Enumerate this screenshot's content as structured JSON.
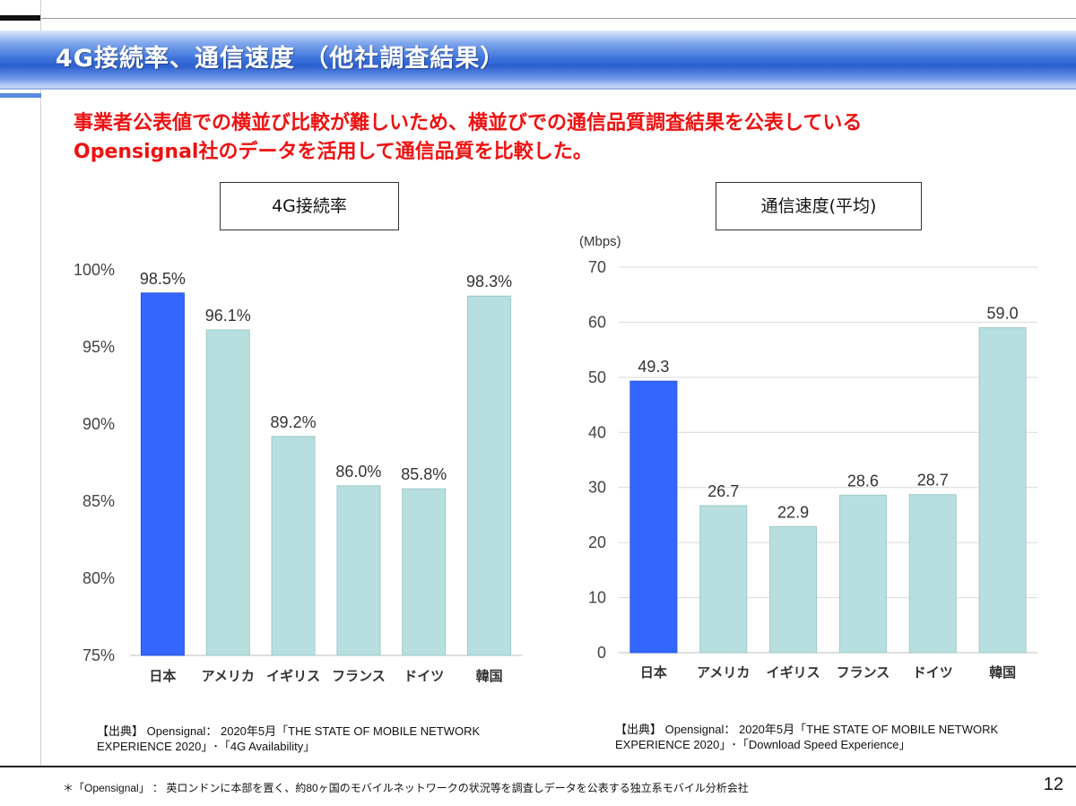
{
  "page_title": "4G接続率、通信速度 （他社調査結果）",
  "lead": {
    "line1": "事業者公表値での横並び比較が難しいため、横並びでの通信品質調査結果を公表している",
    "line2": "Opensignal社のデータを活用して通信品質を比較した。"
  },
  "colors": {
    "highlight": "#3366ff",
    "normal": "#b8dfdf",
    "lead_text": "#ee1111",
    "title_bar": "#2c5fcf"
  },
  "chart_data": [
    {
      "type": "bar",
      "title": "4G接続率",
      "categories": [
        "日本",
        "アメリカ",
        "イギリス",
        "フランス",
        "ドイツ",
        "韓国"
      ],
      "values": [
        98.5,
        96.1,
        89.2,
        86.0,
        85.8,
        98.3
      ],
      "value_labels": [
        "98.5%",
        "96.1%",
        "89.2%",
        "86.0%",
        "85.8%",
        "98.3%"
      ],
      "highlight_category": "日本",
      "ylim": [
        75,
        100
      ],
      "yticks": [
        75,
        80,
        85,
        90,
        95,
        100
      ],
      "ytick_labels": [
        "75%",
        "80%",
        "85%",
        "90%",
        "95%",
        "100%"
      ],
      "grid": false
    },
    {
      "type": "bar",
      "title": "通信速度(平均)",
      "unit": "(Mbps)",
      "categories": [
        "日本",
        "アメリカ",
        "イギリス",
        "フランス",
        "ドイツ",
        "韓国"
      ],
      "values": [
        49.3,
        26.7,
        22.9,
        28.6,
        28.7,
        59.0
      ],
      "value_labels": [
        "49.3",
        "26.7",
        "22.9",
        "28.6",
        "28.7",
        "59.0"
      ],
      "highlight_category": "日本",
      "ylim": [
        0,
        70
      ],
      "yticks": [
        0,
        10,
        20,
        30,
        40,
        50,
        60,
        70
      ],
      "ytick_labels": [
        "0",
        "10",
        "20",
        "30",
        "40",
        "50",
        "60",
        "70"
      ],
      "grid": true
    }
  ],
  "sources": {
    "chart1": {
      "line1": "【出典】 Opensignal： 2020年5月「THE STATE OF MOBILE NETWORK",
      "line2": "EXPERIENCE 2020」･「4G Availability」"
    },
    "chart2": {
      "line1": "【出典】 Opensignal： 2020年5月「THE STATE OF MOBILE NETWORK",
      "line2": "EXPERIENCE 2020」･「Download Speed Experience」"
    }
  },
  "footnote": "＊「Opensignal」 ： 英ロンドンに本部を置く、約80ヶ国のモバイルネットワークの状況等を調査しデータを公表する独立系モバイル分析会社",
  "page_number": "12"
}
